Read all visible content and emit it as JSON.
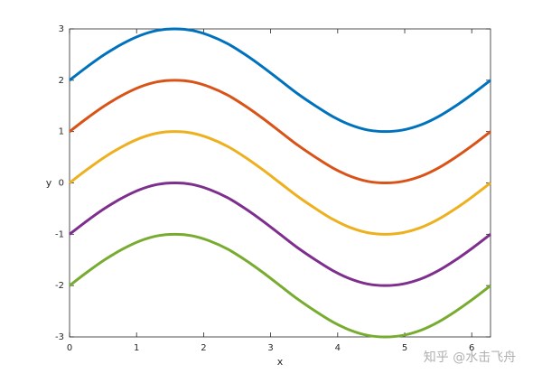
{
  "chart_data": {
    "type": "line",
    "xlabel": "x",
    "ylabel": "y",
    "annotation": "知乎 @水击飞舟",
    "x": [
      0,
      0.26,
      0.52,
      0.79,
      1.05,
      1.31,
      1.57,
      1.83,
      2.09,
      2.36,
      2.62,
      2.88,
      3.14,
      3.4,
      3.67,
      3.93,
      4.19,
      4.45,
      4.71,
      4.97,
      5.24,
      5.5,
      5.76,
      6.02,
      6.28
    ],
    "series": [
      {
        "color": "#0072bd",
        "values": [
          2,
          2.26,
          2.5,
          2.71,
          2.87,
          2.97,
          3,
          2.97,
          2.87,
          2.71,
          2.5,
          2.26,
          2,
          1.74,
          1.5,
          1.29,
          1.13,
          1.03,
          1,
          1.03,
          1.13,
          1.29,
          1.5,
          1.74,
          2
        ]
      },
      {
        "color": "#d95319",
        "values": [
          1,
          1.26,
          1.5,
          1.71,
          1.87,
          1.97,
          2,
          1.97,
          1.87,
          1.71,
          1.5,
          1.26,
          1,
          0.74,
          0.5,
          0.29,
          0.13,
          0.03,
          0,
          0.03,
          0.13,
          0.29,
          0.5,
          0.74,
          1
        ]
      },
      {
        "color": "#edb120",
        "values": [
          0,
          0.26,
          0.5,
          0.71,
          0.87,
          0.97,
          1,
          0.97,
          0.87,
          0.71,
          0.5,
          0.26,
          0,
          -0.26,
          -0.5,
          -0.71,
          -0.87,
          -0.97,
          -1,
          -0.97,
          -0.87,
          -0.71,
          -0.5,
          -0.26,
          0
        ]
      },
      {
        "color": "#7e2f8e",
        "values": [
          -1,
          -0.74,
          -0.5,
          -0.29,
          -0.13,
          -0.03,
          0,
          -0.03,
          -0.13,
          -0.29,
          -0.5,
          -0.74,
          -1,
          -1.26,
          -1.5,
          -1.71,
          -1.87,
          -1.97,
          -2,
          -1.97,
          -1.87,
          -1.71,
          -1.5,
          -1.26,
          -1
        ]
      },
      {
        "color": "#77ac30",
        "values": [
          -2,
          -1.74,
          -1.5,
          -1.29,
          -1.13,
          -1.03,
          -1,
          -1.03,
          -1.13,
          -1.29,
          -1.5,
          -1.74,
          -2,
          -2.26,
          -2.5,
          -2.71,
          -2.87,
          -2.97,
          -3,
          -2.97,
          -2.87,
          -2.71,
          -2.5,
          -2.26,
          -2
        ]
      }
    ],
    "xlim": [
      0,
      6.28
    ],
    "ylim": [
      -3,
      3
    ],
    "xticks": [
      0,
      1,
      2,
      3,
      4,
      5,
      6
    ],
    "yticks": [
      -3,
      -2,
      -1,
      0,
      1,
      2,
      3
    ]
  }
}
